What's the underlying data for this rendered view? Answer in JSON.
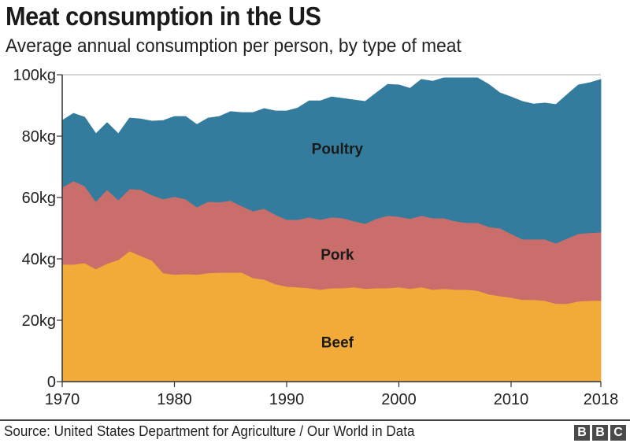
{
  "header": {
    "title": "Meat consumption in the US",
    "subtitle": "Average annual consumption per person, by type of meat"
  },
  "footer": {
    "source": "Source: United States Department for Agriculture / Our World in Data",
    "logo_letters": [
      "B",
      "B",
      "C"
    ]
  },
  "chart_data": {
    "type": "area",
    "stacked": true,
    "title": "Meat consumption in the US",
    "subtitle": "Average annual consumption per person, by type of meat",
    "xlabel": "",
    "ylabel": "",
    "xlim": [
      1970,
      2018
    ],
    "ylim": [
      0,
      100
    ],
    "x_ticks": [
      1970,
      1980,
      1990,
      2000,
      2010,
      2018
    ],
    "x_tick_labels": [
      "1970",
      "1980",
      "1990",
      "2000",
      "2010",
      "2018"
    ],
    "y_ticks": [
      0,
      20,
      40,
      60,
      80,
      100
    ],
    "y_tick_labels": [
      "0",
      "20kg",
      "40kg",
      "60kg",
      "80kg",
      "100kg"
    ],
    "grid": "top reference line at 100kg only",
    "legend": "inline labels",
    "x": [
      1970,
      1971,
      1972,
      1973,
      1974,
      1975,
      1976,
      1977,
      1978,
      1979,
      1980,
      1981,
      1982,
      1983,
      1984,
      1985,
      1986,
      1987,
      1988,
      1989,
      1990,
      1991,
      1992,
      1993,
      1994,
      1995,
      1996,
      1997,
      1998,
      1999,
      2000,
      2001,
      2002,
      2003,
      2004,
      2005,
      2006,
      2007,
      2008,
      2009,
      2010,
      2011,
      2012,
      2013,
      2014,
      2015,
      2016,
      2017,
      2018
    ],
    "series": [
      {
        "name": "Beef",
        "label": "Beef",
        "color": "#f2aa39",
        "values": [
          38.2,
          38.2,
          38.7,
          36.7,
          38.5,
          39.7,
          42.6,
          41.0,
          39.5,
          35.4,
          34.9,
          35.1,
          34.9,
          35.4,
          35.6,
          35.6,
          35.6,
          33.8,
          33.3,
          31.8,
          31.0,
          30.8,
          30.5,
          30.0,
          30.5,
          30.5,
          30.8,
          30.3,
          30.5,
          30.5,
          30.8,
          30.3,
          30.8,
          30.0,
          30.3,
          30.0,
          30.0,
          29.7,
          28.5,
          27.9,
          27.4,
          26.7,
          26.7,
          26.4,
          25.4,
          25.4,
          26.2,
          26.4,
          26.4
        ]
      },
      {
        "name": "Pork",
        "label": "Pork",
        "color": "#c96e6a",
        "values": [
          25.1,
          27.2,
          25.1,
          22.0,
          24.1,
          19.5,
          20.2,
          21.6,
          21.3,
          24.1,
          25.4,
          24.4,
          22.0,
          23.3,
          22.9,
          23.4,
          21.6,
          21.8,
          23.1,
          22.6,
          21.8,
          22.0,
          23.1,
          22.8,
          23.1,
          22.8,
          21.5,
          21.2,
          22.6,
          23.6,
          23.0,
          22.8,
          23.3,
          23.3,
          23.0,
          22.3,
          21.8,
          22.1,
          22.0,
          22.1,
          20.8,
          19.7,
          19.7,
          20.0,
          19.7,
          21.3,
          22.0,
          22.1,
          22.3
        ]
      },
      {
        "name": "Poultry",
        "label": "Poultry",
        "color": "#337c9e",
        "values": [
          21.8,
          22.0,
          22.4,
          22.1,
          21.8,
          21.6,
          23.1,
          23.0,
          24.1,
          25.6,
          26.1,
          26.9,
          26.9,
          27.2,
          27.9,
          29.0,
          30.5,
          32.1,
          32.6,
          33.8,
          35.4,
          36.4,
          37.9,
          38.7,
          39.2,
          39.0,
          39.5,
          39.8,
          41.0,
          42.8,
          42.9,
          42.5,
          44.4,
          44.6,
          45.7,
          46.7,
          47.2,
          47.2,
          46.4,
          44.1,
          44.6,
          44.9,
          44.1,
          44.4,
          45.2,
          46.9,
          48.5,
          48.9,
          49.8
        ]
      }
    ]
  }
}
